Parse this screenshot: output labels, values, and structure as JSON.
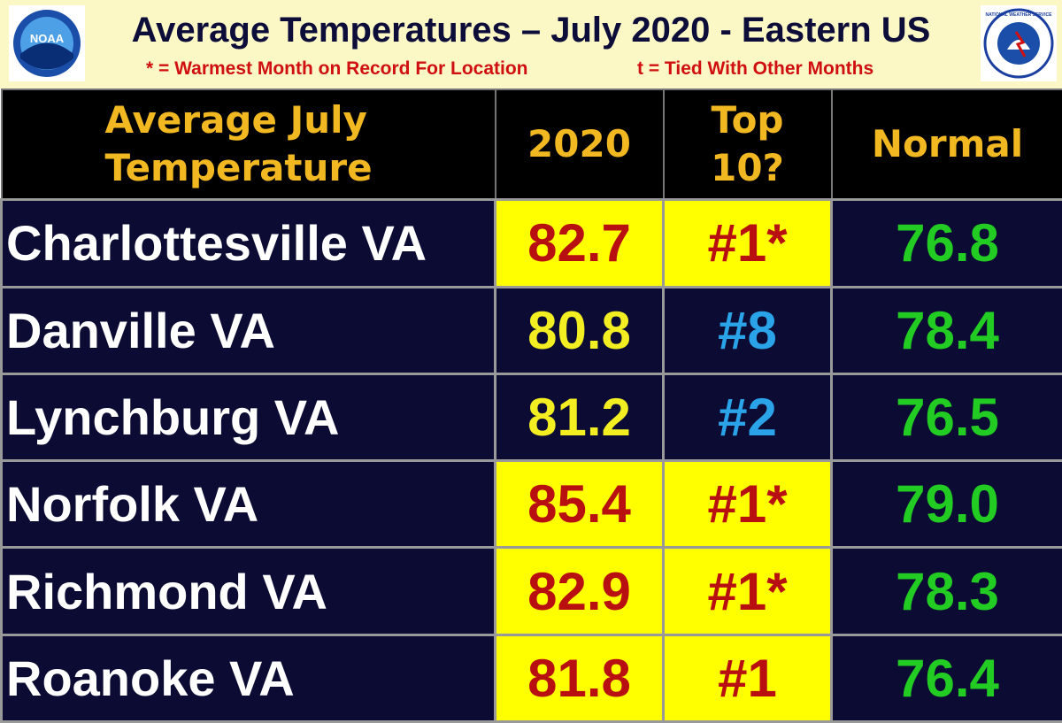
{
  "header": {
    "title": "Average Temperatures – July 2020 - Eastern US",
    "note_warmest": "* = Warmest Month on Record For Location",
    "note_tied": "t = Tied With Other Months",
    "logo_left": "NOAA",
    "logo_right": "NATIONAL WEATHER SERVICE"
  },
  "table": {
    "headers": [
      "Average July Temperature",
      "2020",
      "Top 10?",
      "Normal"
    ],
    "rows": [
      [
        "Charlottesville VA",
        "82.7",
        "#1*",
        "76.8"
      ],
      [
        "Danville VA",
        "80.8",
        "#8",
        "78.4"
      ],
      [
        "Lynchburg VA",
        "81.2",
        "#2",
        "76.5"
      ],
      [
        "Norfolk VA",
        "85.4",
        "#1*",
        "79.0"
      ],
      [
        "Richmond VA",
        "82.9",
        "#1*",
        "78.3"
      ],
      [
        "Roanoke VA",
        "81.8",
        "#1",
        "76.4"
      ]
    ]
  }
}
